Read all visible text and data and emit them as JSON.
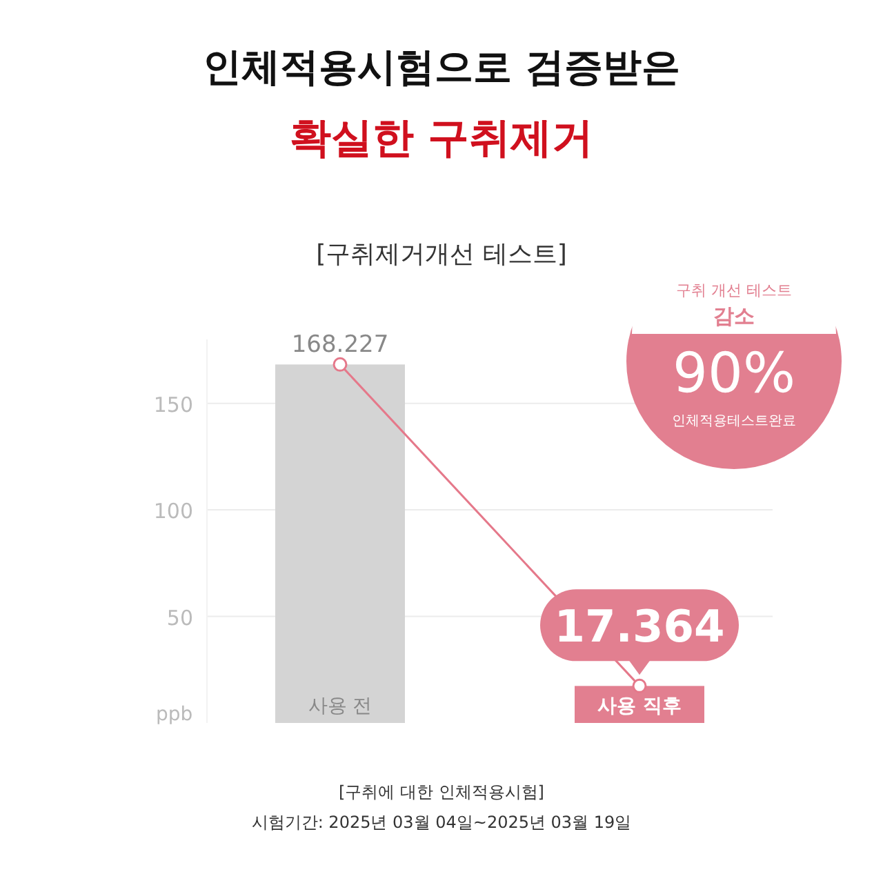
{
  "chart_data": {
    "type": "bar",
    "title": "인체적용시험으로 검증받은",
    "subtitle": "확실한 구취제거",
    "ylabel": "ppb",
    "categories": [
      "사용 전",
      "사용 직후"
    ],
    "series": [
      {
        "colors": [
          "#d4d4d4",
          "#e27f90"
        ],
        "values": [
          168.227,
          17.364
        ],
        "value_labels": [
          "168.227",
          "17.364"
        ]
      },
      {
        "type": "line",
        "color": "#e5788a",
        "marker": "circle",
        "values": [
          168.227,
          17.364
        ]
      }
    ],
    "ylim": [
      0,
      180
    ],
    "yticks": [
      50,
      100,
      150
    ],
    "grid": "y",
    "annotations": [
      "[구취제거개선 테스트]",
      "구취 개선 테스트",
      "감소",
      "90%",
      "인체적용테스트완료",
      "[구취에 대한 인체적용시험]",
      "시험기간: 2025년 03월 04일~2025년 03월 19일"
    ]
  }
}
